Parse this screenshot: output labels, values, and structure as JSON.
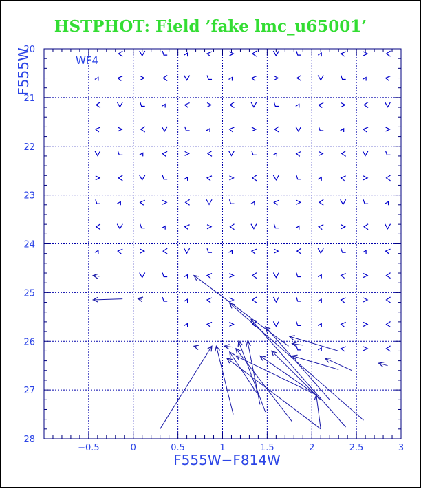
{
  "chart_data": {
    "type": "scatter",
    "title": "HSTPHOT: Field ’fake lmc_u65001’",
    "panel_label": "WF4",
    "xlabel": "F555W−F814W",
    "ylabel": "F555W",
    "xlim": [
      -1.0,
      3.0
    ],
    "ylim": [
      28,
      20
    ],
    "y_inverted": true,
    "grid": true,
    "x_gridlines": [
      -0.5,
      0,
      0.5,
      1,
      1.5,
      2,
      2.5
    ],
    "y_gridlines": [
      21,
      22,
      23,
      24,
      25,
      26,
      27
    ],
    "x_ticks": [
      {
        "value": -0.5,
        "label": "−0.5"
      },
      {
        "value": 0,
        "label": "0"
      },
      {
        "value": 0.5,
        "label": "0.5"
      },
      {
        "value": 1,
        "label": "1"
      },
      {
        "value": 1.5,
        "label": "1.5"
      },
      {
        "value": 2,
        "label": "2"
      },
      {
        "value": 2.5,
        "label": "2.5"
      },
      {
        "value": 3,
        "label": "3"
      }
    ],
    "y_ticks": [
      {
        "value": 20,
        "label": "20"
      },
      {
        "value": 21,
        "label": "21"
      },
      {
        "value": 22,
        "label": "22"
      },
      {
        "value": 23,
        "label": "23"
      },
      {
        "value": 24,
        "label": "24"
      },
      {
        "value": 25,
        "label": "25"
      },
      {
        "value": 26,
        "label": "26"
      },
      {
        "value": 27,
        "label": "27"
      },
      {
        "value": 28,
        "label": "28"
      }
    ],
    "grid_cell_symbols": {
      "x_centers": [
        -0.4,
        -0.15,
        0.1,
        0.35,
        0.6,
        0.85,
        1.1,
        1.35,
        1.6,
        1.85,
        2.1,
        2.35,
        2.6,
        2.85
      ],
      "rows": [
        {
          "y": 20.1,
          "xmin": -0.15,
          "xmax": 2.85
        },
        {
          "y": 20.6,
          "xmin": -0.4,
          "xmax": 2.85
        },
        {
          "y": 21.15,
          "xmin": -0.4,
          "xmax": 2.85
        },
        {
          "y": 21.65,
          "xmin": -0.4,
          "xmax": 2.85
        },
        {
          "y": 22.15,
          "xmin": -0.4,
          "xmax": 2.85
        },
        {
          "y": 22.65,
          "xmin": -0.4,
          "xmax": 2.85
        },
        {
          "y": 23.15,
          "xmin": -0.4,
          "xmax": 2.85
        },
        {
          "y": 23.65,
          "xmin": -0.4,
          "xmax": 2.85
        },
        {
          "y": 24.15,
          "xmin": -0.4,
          "xmax": 2.85
        },
        {
          "y": 24.65,
          "xmin": -0.1,
          "xmax": 2.85
        },
        {
          "y": 25.15,
          "xmin": 0.35,
          "xmax": 2.85
        },
        {
          "y": 25.65,
          "xmin": 0.6,
          "xmax": 2.85
        },
        {
          "y": 26.15,
          "xmin": 1.85,
          "xmax": 2.85
        }
      ]
    },
    "vectors": [
      {
        "x1": -0.45,
        "y1": 25.15,
        "x2": -0.12,
        "y2": 25.13
      },
      {
        "x1": -0.45,
        "y1": 24.65,
        "x2": -0.38,
        "y2": 24.67
      },
      {
        "x1": 0.05,
        "y1": 25.12,
        "x2": 0.1,
        "y2": 25.14
      },
      {
        "x1": 0.68,
        "y1": 24.65,
        "x2": 1.74,
        "y2": 26.1
      },
      {
        "x1": 1.08,
        "y1": 25.22,
        "x2": 2.58,
        "y2": 27.62
      },
      {
        "x1": 1.32,
        "y1": 25.55,
        "x2": 2.38,
        "y2": 27.76
      },
      {
        "x1": 1.48,
        "y1": 25.7,
        "x2": 2.2,
        "y2": 27.2
      },
      {
        "x1": 1.75,
        "y1": 25.9,
        "x2": 2.3,
        "y2": 26.2
      },
      {
        "x1": 1.78,
        "y1": 26.05,
        "x2": 1.9,
        "y2": 26.08
      },
      {
        "x1": 0.68,
        "y1": 26.1,
        "x2": 0.72,
        "y2": 26.12
      },
      {
        "x1": 0.88,
        "y1": 26.1,
        "x2": 0.3,
        "y2": 27.8
      },
      {
        "x1": 0.93,
        "y1": 26.1,
        "x2": 1.12,
        "y2": 27.5
      },
      {
        "x1": 1.02,
        "y1": 26.1,
        "x2": 1.12,
        "y2": 26.12
      },
      {
        "x1": 1.18,
        "y1": 26.0,
        "x2": 1.48,
        "y2": 27.45
      },
      {
        "x1": 1.28,
        "y1": 26.0,
        "x2": 1.42,
        "y2": 27.3
      },
      {
        "x1": 1.15,
        "y1": 26.15,
        "x2": 1.78,
        "y2": 27.65
      },
      {
        "x1": 1.08,
        "y1": 26.22,
        "x2": 1.38,
        "y2": 27.05
      },
      {
        "x1": 1.15,
        "y1": 26.3,
        "x2": 2.05,
        "y2": 27.1
      },
      {
        "x1": 1.42,
        "y1": 26.3,
        "x2": 2.05,
        "y2": 27.1
      },
      {
        "x1": 1.55,
        "y1": 26.2,
        "x2": 2.1,
        "y2": 27.2
      },
      {
        "x1": 1.78,
        "y1": 26.3,
        "x2": 2.3,
        "y2": 26.58
      },
      {
        "x1": 1.05,
        "y1": 26.35,
        "x2": 2.1,
        "y2": 27.8
      },
      {
        "x1": 2.05,
        "y1": 27.1,
        "x2": 2.1,
        "y2": 27.8
      },
      {
        "x1": 2.15,
        "y1": 26.35,
        "x2": 2.45,
        "y2": 26.6
      },
      {
        "x1": 2.75,
        "y1": 26.45,
        "x2": 2.85,
        "y2": 26.5
      }
    ]
  },
  "colors": {
    "title": "#33dd33",
    "axis_label": "#2b44e6",
    "axes": "#000080",
    "grid": "#0000aa",
    "symbols": "#0000cc",
    "vectors": "#1a1aa8"
  }
}
